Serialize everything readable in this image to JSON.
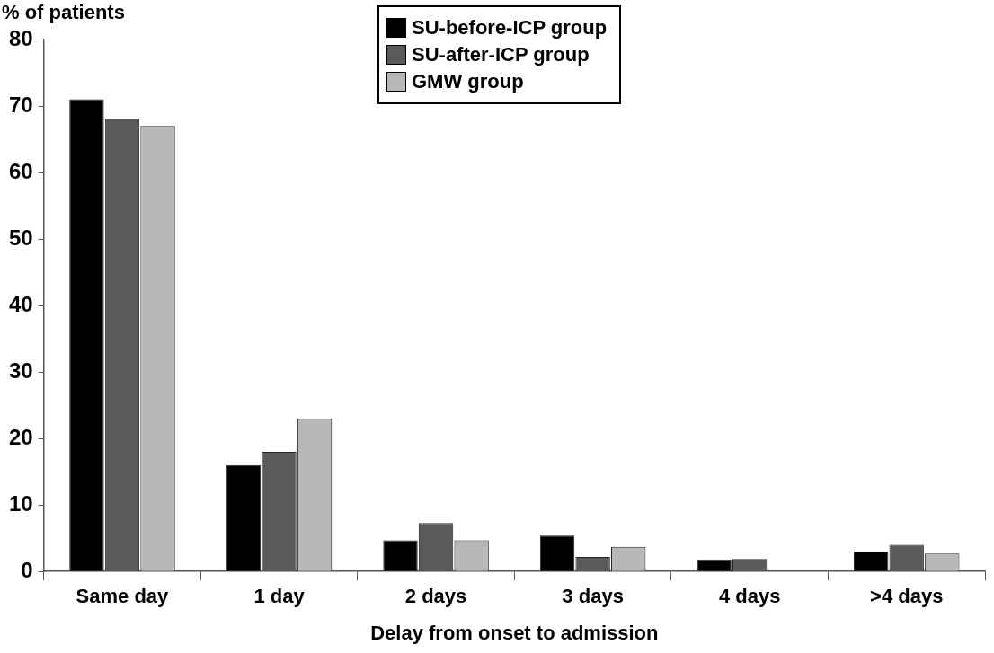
{
  "chart_data": {
    "type": "bar",
    "xlabel": "Delay from onset to admission",
    "ylabel": "% of patients",
    "categories": [
      "Same day",
      "1 day",
      "2 days",
      "3 days",
      "4 days",
      ">4 days"
    ],
    "series": [
      {
        "name": "SU-before-ICP group",
        "color": "#000000",
        "values": [
          71,
          16,
          4.7,
          5.4,
          1.7,
          3
        ]
      },
      {
        "name": "SU-after-ICP group",
        "color": "#5a5a5a",
        "values": [
          68,
          18,
          7.3,
          2.2,
          1.9,
          4
        ]
      },
      {
        "name": "GMW group",
        "color": "#b8b8b8",
        "values": [
          67,
          23,
          4.7,
          3.7,
          0,
          2.7
        ]
      }
    ],
    "ylim": [
      0,
      80
    ],
    "yticks": [
      0,
      10,
      20,
      30,
      40,
      50,
      60,
      70,
      80
    ],
    "grid": false,
    "legend": "top"
  }
}
